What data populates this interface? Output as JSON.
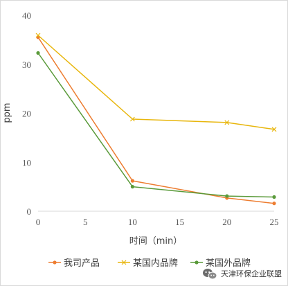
{
  "chart_data": {
    "type": "line",
    "xlabel": "时间（min）",
    "ylabel": "ppm",
    "xlim": [
      0,
      25
    ],
    "ylim": [
      0,
      40
    ],
    "xticks": [
      0,
      5,
      10,
      15,
      20,
      25
    ],
    "yticks": [
      0,
      10,
      20,
      30,
      40
    ],
    "grid": false,
    "legend_position": "bottom",
    "x": [
      0,
      10,
      20,
      25
    ],
    "series": [
      {
        "name": "我司产品",
        "values": [
          35.5,
          6.2,
          2.7,
          1.6
        ],
        "color": "#ed7d31",
        "marker": "circle"
      },
      {
        "name": "某国内品牌",
        "values": [
          35.9,
          18.8,
          18.1,
          16.7
        ],
        "color": "#e8b60c",
        "marker": "x"
      },
      {
        "name": "某国外品牌",
        "values": [
          32.3,
          5.0,
          3.1,
          2.9
        ],
        "color": "#5a9a3a",
        "marker": "circle"
      }
    ]
  },
  "watermark": {
    "text": "天津环保企业联盟",
    "icon": "wechat-icon"
  }
}
